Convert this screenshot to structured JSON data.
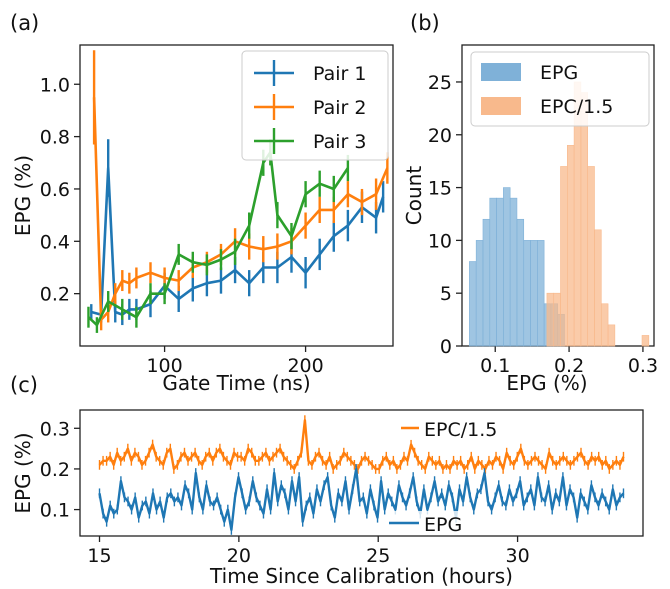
{
  "colors": {
    "blue": "#1f77b4",
    "orange": "#ff7f0e",
    "green": "#2ca02c",
    "hist_blue": "#7fb1d8",
    "hist_orange": "#f8b98c"
  },
  "panel_labels": {
    "a": "(a)",
    "b": "(b)",
    "c": "(c)"
  },
  "chart_data": [
    {
      "type": "line",
      "panel": "(a)",
      "xlabel": "Gate Time (ns)",
      "ylabel": "EPG (%)",
      "xlim": [
        40,
        262
      ],
      "ylim": [
        0.0,
        1.15
      ],
      "xticks": [
        100,
        200
      ],
      "yticks": [
        0.2,
        0.4,
        0.6,
        0.8,
        1.0
      ],
      "ytick_labels": [
        "0.2",
        "0.4",
        "0.6",
        "0.8",
        "1.0"
      ],
      "legend_position": "top-right",
      "series": [
        {
          "name": "Pair 1",
          "color": "#1f77b4",
          "x": [
            48,
            55,
            60,
            65,
            70,
            75,
            80,
            90,
            100,
            110,
            120,
            130,
            140,
            150,
            160,
            170,
            180,
            190,
            200,
            210,
            220,
            230,
            240,
            250,
            255
          ],
          "y": [
            0.13,
            0.12,
            0.68,
            0.13,
            0.12,
            0.14,
            0.14,
            0.16,
            0.23,
            0.18,
            0.22,
            0.24,
            0.25,
            0.29,
            0.24,
            0.3,
            0.3,
            0.34,
            0.28,
            0.35,
            0.42,
            0.46,
            0.53,
            0.49,
            0.57
          ],
          "err": [
            0.03,
            0.03,
            0.11,
            0.04,
            0.04,
            0.04,
            0.04,
            0.05,
            0.05,
            0.05,
            0.05,
            0.05,
            0.05,
            0.05,
            0.05,
            0.06,
            0.06,
            0.06,
            0.06,
            0.06,
            0.06,
            0.06,
            0.06,
            0.06,
            0.06
          ]
        },
        {
          "name": "Pair 2",
          "color": "#ff7f0e",
          "x": [
            50,
            55,
            60,
            65,
            70,
            75,
            80,
            90,
            100,
            110,
            120,
            130,
            140,
            150,
            160,
            170,
            180,
            190,
            200,
            210,
            220,
            230,
            240,
            250,
            258
          ],
          "y": [
            0.95,
            0.1,
            0.13,
            0.2,
            0.25,
            0.24,
            0.26,
            0.28,
            0.26,
            0.25,
            0.3,
            0.32,
            0.35,
            0.4,
            0.38,
            0.37,
            0.38,
            0.4,
            0.46,
            0.52,
            0.52,
            0.58,
            0.55,
            0.58,
            0.68
          ],
          "err": [
            0.18,
            0.04,
            0.04,
            0.04,
            0.04,
            0.04,
            0.04,
            0.04,
            0.04,
            0.04,
            0.04,
            0.04,
            0.04,
            0.05,
            0.05,
            0.05,
            0.05,
            0.05,
            0.05,
            0.05,
            0.05,
            0.05,
            0.05,
            0.06,
            0.06
          ]
        },
        {
          "name": "Pair 3",
          "color": "#2ca02c",
          "x": [
            46,
            52,
            60,
            70,
            80,
            90,
            100,
            110,
            120,
            130,
            140,
            150,
            160,
            170,
            175,
            180,
            190,
            200,
            210,
            220,
            230
          ],
          "y": [
            0.11,
            0.08,
            0.17,
            0.14,
            0.11,
            0.2,
            0.2,
            0.35,
            0.32,
            0.31,
            0.33,
            0.36,
            0.46,
            0.7,
            0.74,
            0.5,
            0.42,
            0.58,
            0.62,
            0.6,
            0.68
          ],
          "err": [
            0.04,
            0.03,
            0.04,
            0.04,
            0.04,
            0.04,
            0.04,
            0.04,
            0.04,
            0.04,
            0.04,
            0.05,
            0.05,
            0.05,
            0.05,
            0.05,
            0.05,
            0.05,
            0.05,
            0.05,
            0.05
          ]
        }
      ]
    },
    {
      "type": "histogram",
      "panel": "(b)",
      "xlabel": "EPG (%)",
      "ylabel": "Count",
      "xlim": [
        0.055,
        0.315
      ],
      "ylim": [
        0,
        28.5
      ],
      "xticks": [
        0.1,
        0.2,
        0.3
      ],
      "xtick_labels": [
        "0.1",
        "0.2",
        "0.3"
      ],
      "yticks": [
        0,
        5,
        10,
        15,
        20,
        25
      ],
      "legend_position": "top-right",
      "series": [
        {
          "name": "EPG",
          "color": "#7fb1d8",
          "bins": [
            0.065,
            0.0742,
            0.0834,
            0.0926,
            0.1018,
            0.111,
            0.1202,
            0.1294,
            0.1386,
            0.1478,
            0.157,
            0.1662,
            0.1754,
            0.1846,
            0.1938
          ],
          "counts": [
            8,
            10,
            12,
            14,
            14,
            15,
            14,
            12,
            10,
            10,
            10,
            4,
            4,
            3
          ]
        },
        {
          "name": "EPC/1.5",
          "color": "#f8b98c",
          "bins": [
            0.17,
            0.1792,
            0.1884,
            0.1976,
            0.2068,
            0.216,
            0.2252,
            0.2344,
            0.2436,
            0.2528,
            0.262,
            0.2712,
            0.2804,
            0.2896,
            0.2988,
            0.308
          ],
          "counts": [
            5,
            5,
            17,
            19,
            25,
            24,
            17,
            11,
            4,
            2,
            0,
            0,
            0,
            0,
            1
          ]
        }
      ]
    },
    {
      "type": "line",
      "panel": "(c)",
      "xlabel": "Time Since Calibration (hours)",
      "ylabel": "EPG (%)",
      "xlim": [
        14.3,
        34.5
      ],
      "ylim": [
        0.035,
        0.345
      ],
      "xticks": [
        15,
        20,
        25,
        30
      ],
      "yticks": [
        0.1,
        0.2,
        0.3
      ],
      "ytick_labels": [
        "0.1",
        "0.2",
        "0.3"
      ],
      "series": [
        {
          "name": "EPC/1.5",
          "color": "#ff7f0e",
          "label_position": "top-right",
          "x_start": 15.0,
          "x_end": 33.8,
          "y": [
            0.21,
            0.22,
            0.22,
            0.23,
            0.21,
            0.24,
            0.22,
            0.23,
            0.25,
            0.22,
            0.24,
            0.23,
            0.21,
            0.22,
            0.24,
            0.26,
            0.23,
            0.22,
            0.21,
            0.24,
            0.25,
            0.2,
            0.21,
            0.23,
            0.24,
            0.22,
            0.23,
            0.24,
            0.22,
            0.21,
            0.23,
            0.24,
            0.22,
            0.24,
            0.25,
            0.23,
            0.22,
            0.21,
            0.24,
            0.23,
            0.23,
            0.22,
            0.25,
            0.24,
            0.22,
            0.22,
            0.23,
            0.24,
            0.22,
            0.23,
            0.24,
            0.25,
            0.23,
            0.22,
            0.21,
            0.2,
            0.22,
            0.24,
            0.32,
            0.22,
            0.21,
            0.23,
            0.24,
            0.22,
            0.21,
            0.23,
            0.2,
            0.21,
            0.22,
            0.24,
            0.23,
            0.22,
            0.21,
            0.2,
            0.22,
            0.23,
            0.22,
            0.21,
            0.2,
            0.2,
            0.22,
            0.23,
            0.21,
            0.22,
            0.2,
            0.21,
            0.23,
            0.22,
            0.26,
            0.24,
            0.22,
            0.21,
            0.2,
            0.23,
            0.22,
            0.21,
            0.22,
            0.2,
            0.21,
            0.2,
            0.22,
            0.21,
            0.22,
            0.2,
            0.21,
            0.23,
            0.2,
            0.22,
            0.21,
            0.2,
            0.22,
            0.21,
            0.23,
            0.22,
            0.2,
            0.24,
            0.22,
            0.21,
            0.23,
            0.25,
            0.22,
            0.21,
            0.22,
            0.23,
            0.22,
            0.21,
            0.2,
            0.24,
            0.22,
            0.21,
            0.22,
            0.23,
            0.22,
            0.21,
            0.22,
            0.23,
            0.24,
            0.22,
            0.21,
            0.23,
            0.22,
            0.23,
            0.21,
            0.22,
            0.2,
            0.21,
            0.22,
            0.21,
            0.23
          ]
        },
        {
          "name": "EPG",
          "color": "#1f77b4",
          "label_position": "bottom-right",
          "x_start": 15.0,
          "x_end": 33.8,
          "y": [
            0.14,
            0.09,
            0.07,
            0.11,
            0.09,
            0.1,
            0.17,
            0.13,
            0.12,
            0.1,
            0.13,
            0.08,
            0.11,
            0.12,
            0.09,
            0.14,
            0.1,
            0.12,
            0.08,
            0.13,
            0.14,
            0.12,
            0.13,
            0.11,
            0.16,
            0.14,
            0.1,
            0.19,
            0.13,
            0.1,
            0.16,
            0.12,
            0.11,
            0.13,
            0.1,
            0.07,
            0.1,
            0.05,
            0.13,
            0.18,
            0.14,
            0.1,
            0.12,
            0.17,
            0.13,
            0.11,
            0.09,
            0.15,
            0.1,
            0.19,
            0.12,
            0.16,
            0.14,
            0.1,
            0.17,
            0.12,
            0.18,
            0.07,
            0.11,
            0.13,
            0.09,
            0.15,
            0.12,
            0.16,
            0.18,
            0.11,
            0.08,
            0.14,
            0.12,
            0.17,
            0.1,
            0.15,
            0.2,
            0.12,
            0.13,
            0.09,
            0.15,
            0.11,
            0.08,
            0.17,
            0.1,
            0.14,
            0.12,
            0.1,
            0.16,
            0.13,
            0.11,
            0.14,
            0.18,
            0.12,
            0.09,
            0.15,
            0.1,
            0.13,
            0.17,
            0.12,
            0.14,
            0.11,
            0.16,
            0.13,
            0.08,
            0.15,
            0.12,
            0.18,
            0.13,
            0.1,
            0.14,
            0.15,
            0.19,
            0.12,
            0.1,
            0.13,
            0.16,
            0.12,
            0.11,
            0.15,
            0.12,
            0.14,
            0.17,
            0.11,
            0.13,
            0.15,
            0.11,
            0.18,
            0.13,
            0.12,
            0.16,
            0.1,
            0.14,
            0.12,
            0.18,
            0.11,
            0.15,
            0.13,
            0.08,
            0.14,
            0.12,
            0.1,
            0.16,
            0.13,
            0.11,
            0.14,
            0.12,
            0.1,
            0.15,
            0.11,
            0.13,
            0.14
          ]
        }
      ]
    }
  ]
}
